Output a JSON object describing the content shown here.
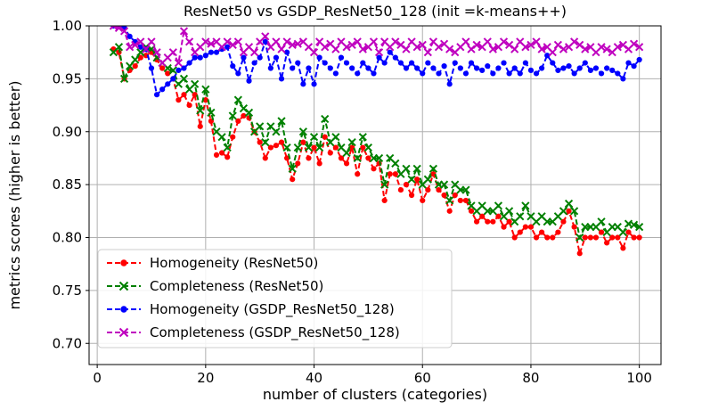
{
  "chart_data": {
    "type": "line",
    "title": "ResNet50 vs GSDP_ResNet50_128 (init =k-means++)",
    "xlabel": "number of clusters (categories)",
    "ylabel": "metrics scores (higher is better)",
    "xlim": [
      -1.5,
      104
    ],
    "ylim": [
      0.68,
      1.0
    ],
    "grid": true,
    "legend_position": "lower-left",
    "xticks": [
      0,
      20,
      40,
      60,
      80,
      100
    ],
    "xtick_labels": [
      "0",
      "20",
      "40",
      "60",
      "80",
      "100"
    ],
    "yticks": [
      0.7,
      0.75,
      0.8,
      0.85,
      0.9,
      0.95,
      1.0
    ],
    "ytick_labels": [
      "0.70",
      "0.75",
      "0.80",
      "0.85",
      "0.90",
      "0.95",
      "1.00"
    ],
    "series": [
      {
        "name": "Homogeneity (ResNet50)",
        "color": "#ff0000",
        "marker": "dot",
        "x_start": 3,
        "values": [
          0.978,
          0.975,
          0.95,
          0.958,
          0.962,
          0.97,
          0.972,
          0.975,
          0.968,
          0.96,
          0.955,
          0.95,
          0.93,
          0.935,
          0.925,
          0.935,
          0.905,
          0.93,
          0.91,
          0.878,
          0.88,
          0.876,
          0.895,
          0.91,
          0.915,
          0.913,
          0.9,
          0.89,
          0.875,
          0.885,
          0.887,
          0.89,
          0.875,
          0.855,
          0.87,
          0.89,
          0.875,
          0.885,
          0.87,
          0.895,
          0.88,
          0.885,
          0.875,
          0.87,
          0.885,
          0.86,
          0.885,
          0.875,
          0.865,
          0.87,
          0.835,
          0.86,
          0.86,
          0.845,
          0.85,
          0.84,
          0.855,
          0.835,
          0.845,
          0.86,
          0.845,
          0.84,
          0.825,
          0.84,
          0.835,
          0.835,
          0.825,
          0.815,
          0.82,
          0.815,
          0.815,
          0.82,
          0.81,
          0.815,
          0.8,
          0.805,
          0.81,
          0.81,
          0.8,
          0.805,
          0.8,
          0.8,
          0.805,
          0.815,
          0.825,
          0.81,
          0.785,
          0.8,
          0.8,
          0.8,
          0.805,
          0.795,
          0.8,
          0.8,
          0.79,
          0.805,
          0.8,
          0.8
        ]
      },
      {
        "name": "Completeness (ResNet50)",
        "color": "#008000",
        "marker": "x",
        "x_start": 3,
        "values": [
          0.975,
          0.98,
          0.95,
          0.962,
          0.968,
          0.975,
          0.98,
          0.978,
          0.97,
          0.965,
          0.96,
          0.958,
          0.945,
          0.95,
          0.94,
          0.945,
          0.92,
          0.94,
          0.918,
          0.9,
          0.895,
          0.885,
          0.915,
          0.93,
          0.922,
          0.918,
          0.9,
          0.905,
          0.89,
          0.905,
          0.9,
          0.91,
          0.885,
          0.865,
          0.885,
          0.9,
          0.885,
          0.895,
          0.885,
          0.912,
          0.89,
          0.895,
          0.885,
          0.88,
          0.89,
          0.875,
          0.895,
          0.885,
          0.875,
          0.875,
          0.85,
          0.875,
          0.87,
          0.86,
          0.865,
          0.855,
          0.865,
          0.85,
          0.855,
          0.865,
          0.85,
          0.85,
          0.835,
          0.85,
          0.845,
          0.845,
          0.83,
          0.825,
          0.83,
          0.825,
          0.825,
          0.83,
          0.82,
          0.825,
          0.815,
          0.82,
          0.83,
          0.82,
          0.815,
          0.82,
          0.815,
          0.815,
          0.82,
          0.825,
          0.832,
          0.825,
          0.8,
          0.81,
          0.81,
          0.81,
          0.815,
          0.805,
          0.81,
          0.81,
          0.805,
          0.813,
          0.812,
          0.81
        ]
      },
      {
        "name": "Homogeneity (GSDP_ResNet50_128)",
        "color": "#0000ff",
        "marker": "dot",
        "x_start": 3,
        "values": [
          1.0,
          1.0,
          0.998,
          0.99,
          0.985,
          0.98,
          0.978,
          0.96,
          0.935,
          0.94,
          0.945,
          0.95,
          0.958,
          0.96,
          0.965,
          0.97,
          0.97,
          0.972,
          0.975,
          0.975,
          0.978,
          0.98,
          0.962,
          0.955,
          0.97,
          0.948,
          0.965,
          0.97,
          0.985,
          0.96,
          0.97,
          0.95,
          0.975,
          0.96,
          0.965,
          0.945,
          0.96,
          0.945,
          0.97,
          0.965,
          0.96,
          0.955,
          0.97,
          0.965,
          0.96,
          0.955,
          0.965,
          0.96,
          0.955,
          0.97,
          0.965,
          0.975,
          0.97,
          0.965,
          0.96,
          0.965,
          0.96,
          0.955,
          0.965,
          0.96,
          0.955,
          0.962,
          0.945,
          0.965,
          0.96,
          0.955,
          0.965,
          0.96,
          0.958,
          0.962,
          0.955,
          0.96,
          0.965,
          0.955,
          0.96,
          0.955,
          0.965,
          0.958,
          0.955,
          0.96,
          0.972,
          0.965,
          0.958,
          0.96,
          0.962,
          0.955,
          0.96,
          0.965,
          0.958,
          0.96,
          0.955,
          0.96,
          0.958,
          0.955,
          0.95,
          0.965,
          0.962,
          0.968
        ]
      },
      {
        "name": "Completeness (GSDP_ResNet50_128)",
        "color": "#bf00bf",
        "marker": "x",
        "x_start": 3,
        "values": [
          1.0,
          0.998,
          0.995,
          0.98,
          0.982,
          0.985,
          0.978,
          0.985,
          0.975,
          0.965,
          0.97,
          0.975,
          0.965,
          0.995,
          0.985,
          0.975,
          0.98,
          0.985,
          0.983,
          0.985,
          0.98,
          0.985,
          0.982,
          0.985,
          0.975,
          0.98,
          0.975,
          0.985,
          0.99,
          0.98,
          0.985,
          0.978,
          0.985,
          0.982,
          0.983,
          0.985,
          0.98,
          0.975,
          0.985,
          0.98,
          0.983,
          0.978,
          0.985,
          0.98,
          0.982,
          0.985,
          0.978,
          0.98,
          0.985,
          0.975,
          0.985,
          0.98,
          0.985,
          0.982,
          0.978,
          0.985,
          0.98,
          0.982,
          0.975,
          0.985,
          0.98,
          0.983,
          0.978,
          0.975,
          0.98,
          0.985,
          0.978,
          0.982,
          0.98,
          0.985,
          0.978,
          0.98,
          0.985,
          0.982,
          0.978,
          0.985,
          0.98,
          0.982,
          0.985,
          0.978,
          0.98,
          0.975,
          0.982,
          0.978,
          0.98,
          0.985,
          0.982,
          0.978,
          0.98,
          0.975,
          0.98,
          0.978,
          0.975,
          0.98,
          0.982,
          0.978,
          0.983,
          0.98
        ]
      }
    ]
  }
}
